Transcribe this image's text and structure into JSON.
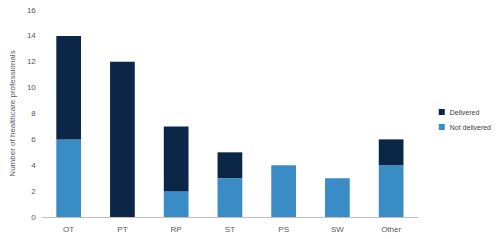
{
  "chart_data": {
    "type": "bar",
    "stacked": true,
    "legend": "right",
    "grid": false,
    "y_label": "Number of healthcare professionals",
    "categories": [
      "OT",
      "PT",
      "RP",
      "ST",
      "PS",
      "SW",
      "Other"
    ],
    "series": [
      {
        "name": "Not delivered",
        "color": "#3a8cc6",
        "values": [
          6,
          0,
          2,
          3,
          4,
          3,
          4
        ]
      },
      {
        "name": "Delivered",
        "color": "#0c2648",
        "values": [
          8,
          12,
          5,
          2,
          0,
          0,
          2
        ]
      }
    ],
    "ylim": [
      0,
      16
    ],
    "yticks": [
      0,
      2,
      4,
      6,
      8,
      10,
      12,
      14,
      16
    ]
  }
}
